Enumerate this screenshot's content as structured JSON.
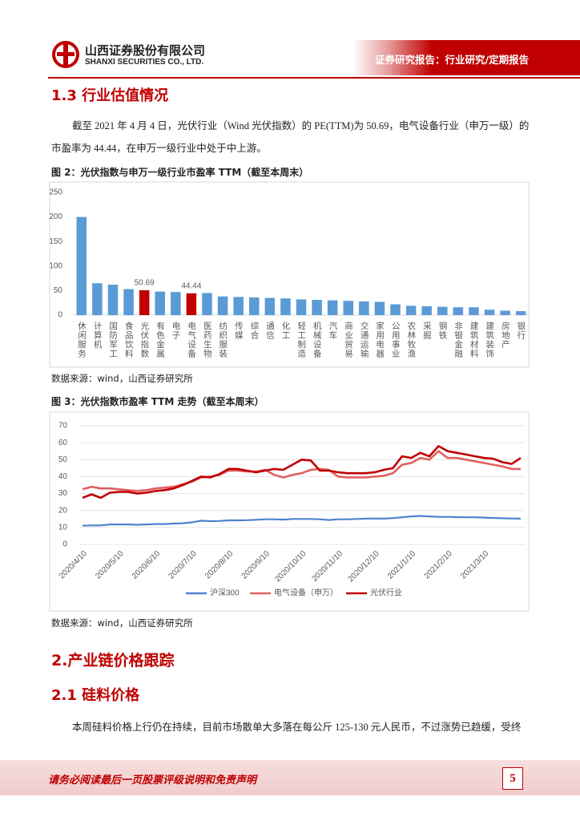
{
  "header": {
    "company": "山西证券股份有限公司",
    "company_en": "SHANXI SECURITIES CO., LTD.",
    "report_type": "证券研究报告：行业研究/定期报告"
  },
  "section_1_3": {
    "heading": "1.3 行业估值情况",
    "paragraph": "截至 2021 年 4 月 4 日，光伏行业（Wind 光伏指数）的 PE(TTM)为 50.69，电气设备行业（申万一级）的市盈率为 44.44，在申万一级行业中处于中上游。"
  },
  "figure_2": {
    "caption": "图 2：光伏指数与申万一级行业市盈率 TTM（截至本周末）",
    "source": "数据来源：wind，山西证券研究所"
  },
  "figure_3": {
    "caption": "图 3：光伏指数市盈率 TTM 走势（截至本周末）",
    "source": "数据来源：wind，山西证券研究所"
  },
  "section_2": {
    "heading": "2.产业链价格跟踪"
  },
  "section_2_1": {
    "heading": "2.1 硅料价格",
    "paragraph": "本周硅料价格上行仍在持续，目前市场散单大多落在每公斤 125-130 元人民币，不过涨势已趋缓，受终"
  },
  "footer": {
    "disclaimer": "请务必阅读最后一页股票评级说明和免责声明",
    "page": 5
  },
  "chart_data": [
    {
      "type": "bar",
      "categories": [
        "休闲服务",
        "计算机",
        "国防军工",
        "食品饮料",
        "光伏指数",
        "有色金属",
        "电子",
        "电气设备",
        "医药生物",
        "纺织服装",
        "传媒",
        "综合",
        "通信",
        "化工",
        "轻工制造",
        "机械设备",
        "汽车",
        "商业贸易",
        "交通运输",
        "家用电器",
        "公用事业",
        "农林牧渔",
        "采掘",
        "钢铁",
        "非银金融",
        "建筑材料",
        "建筑装饰",
        "房地产",
        "银行"
      ],
      "values": [
        200,
        65,
        62,
        53,
        50.69,
        48,
        47,
        44.44,
        45,
        38,
        37,
        36,
        35,
        34,
        32,
        31,
        30,
        29,
        28,
        27,
        22,
        19,
        18,
        17,
        16,
        16,
        11,
        9,
        8
      ],
      "value_labels": [
        null,
        null,
        null,
        null,
        "50.69",
        null,
        null,
        "44.44",
        null,
        null,
        null,
        null,
        null,
        null,
        null,
        null,
        null,
        null,
        null,
        null,
        null,
        null,
        null,
        null,
        null,
        null,
        null,
        null,
        null
      ],
      "colors": [
        "#5b9bd5",
        "#5b9bd5",
        "#5b9bd5",
        "#5b9bd5",
        "#c00000",
        "#5b9bd5",
        "#5b9bd5",
        "#c00000",
        "#5b9bd5",
        "#5b9bd5",
        "#5b9bd5",
        "#5b9bd5",
        "#5b9bd5",
        "#5b9bd5",
        "#5b9bd5",
        "#5b9bd5",
        "#5b9bd5",
        "#5b9bd5",
        "#5b9bd5",
        "#5b9bd5",
        "#5b9bd5",
        "#5b9bd5",
        "#5b9bd5",
        "#5b9bd5",
        "#5b9bd5",
        "#5b9bd5",
        "#5b9bd5",
        "#5b9bd5",
        "#5b9bd5"
      ],
      "ylim": [
        0,
        250
      ],
      "yticks": [
        0,
        50,
        100,
        150,
        200,
        250
      ],
      "grid": false
    },
    {
      "type": "line",
      "categories": [
        "2020/4/10",
        null,
        null,
        null,
        "2020/5/10",
        null,
        null,
        null,
        "2020/6/10",
        null,
        null,
        null,
        "2020/7/10",
        null,
        null,
        null,
        "2020/8/10",
        null,
        null,
        null,
        "2020/9/10",
        null,
        null,
        null,
        "2020/10/10",
        null,
        null,
        null,
        "2020/11/10",
        null,
        null,
        null,
        "2020/12/10",
        null,
        null,
        null,
        "2021/1/10",
        null,
        null,
        null,
        "2021/2/10",
        null,
        null,
        null,
        "2021/3/10",
        null,
        null,
        null,
        null
      ],
      "series": [
        {
          "name": "沪深300",
          "color": "#4f81d0",
          "values": [
            11,
            11.2,
            11.2,
            11.8,
            11.8,
            11.8,
            11.6,
            11.8,
            12,
            12,
            12.3,
            12.5,
            13,
            14,
            13.7,
            13.8,
            14.2,
            14.2,
            14.3,
            14.5,
            14.8,
            14.8,
            14.6,
            15,
            15,
            15,
            14.8,
            14.4,
            14.8,
            14.8,
            15,
            15.2,
            15.3,
            15.2,
            15.5,
            16,
            16.5,
            16.8,
            16.5,
            16.2,
            16.2,
            16.1,
            16,
            16,
            15.8,
            15.6,
            15.4,
            15.3,
            15.2
          ]
        },
        {
          "name": "电气设备（申万）",
          "color": "#e06060",
          "values": [
            32.5,
            34,
            33,
            33,
            32.5,
            32,
            31.5,
            32,
            33,
            33.5,
            34,
            35.5,
            37,
            39.5,
            40,
            41,
            43.5,
            43.5,
            43,
            43,
            44,
            41,
            39.5,
            41,
            42,
            44,
            44.5,
            44,
            40,
            39.5,
            39.5,
            39.5,
            40,
            40.5,
            42,
            47,
            48,
            51,
            50,
            55,
            51,
            51,
            50,
            49,
            48,
            47,
            46,
            44.5,
            44.5
          ]
        },
        {
          "name": "光伏行业",
          "color": "#c00000",
          "values": [
            27.5,
            29.5,
            27.5,
            30.5,
            31,
            31,
            30,
            30.5,
            31.5,
            32,
            33,
            35,
            37.5,
            40,
            39.5,
            41.5,
            44.5,
            44.5,
            43.5,
            42.5,
            43.5,
            44.5,
            44,
            47,
            50,
            49.5,
            43.5,
            43.5,
            42.5,
            42,
            42,
            42,
            42.5,
            44,
            45,
            52,
            51,
            54,
            52,
            58,
            55,
            54,
            53,
            52,
            51,
            50.5,
            48.5,
            47.5,
            51
          ]
        }
      ],
      "ylim": [
        0,
        70
      ],
      "yticks": [
        0,
        10,
        20,
        30,
        40,
        50,
        60,
        70
      ],
      "grid": true,
      "legend": "bottom"
    }
  ]
}
